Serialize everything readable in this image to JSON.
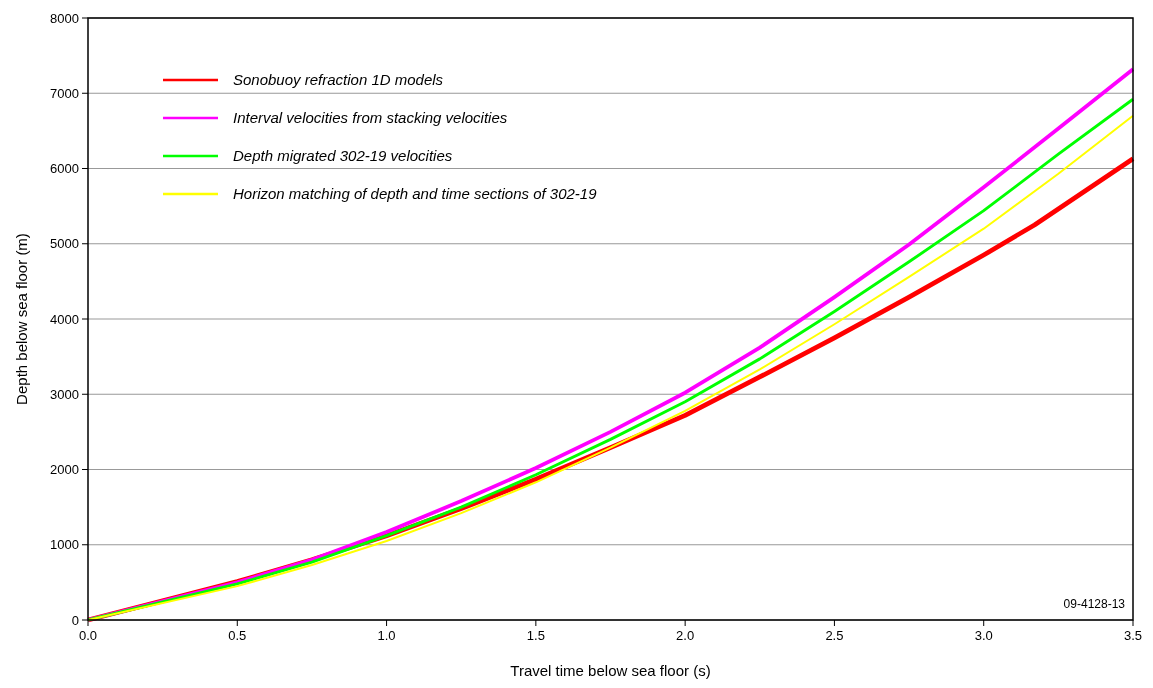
{
  "chart_data": {
    "type": "line",
    "xlabel": "Travel time below sea floor (s)",
    "ylabel": "Depth below sea floor (m)",
    "xlim": [
      0,
      3.5
    ],
    "xticks": [
      {
        "value": 0,
        "label": "0.0"
      },
      {
        "value": 0.5,
        "label": "0.5"
      },
      {
        "value": 1,
        "label": "1.0"
      },
      {
        "value": 1.5,
        "label": "1.5"
      },
      {
        "value": 2,
        "label": "2.0"
      },
      {
        "value": 2.5,
        "label": "2.5"
      },
      {
        "value": 3,
        "label": "3.0"
      },
      {
        "value": 3.5,
        "label": "3.5"
      }
    ],
    "ylim": [
      0,
      8000
    ],
    "yticks": [
      0,
      1000,
      2000,
      3000,
      4000,
      5000,
      6000,
      7000,
      8000
    ],
    "grid": "y",
    "legend": "top left",
    "line_style": "solid",
    "annotations": [
      "09-4128-13"
    ],
    "series": [
      {
        "name": "Sonobuoy refraction 1D models",
        "color": "#ff0000",
        "x": [
          0,
          0.5,
          0.75,
          1,
          1.25,
          1.5,
          1.75,
          2,
          2.25,
          2.5,
          2.75,
          3,
          3.17,
          3.5
        ],
        "values": [
          0,
          510,
          800,
          1120,
          1480,
          1870,
          2290,
          2720,
          3230,
          3750,
          4290,
          4850,
          5250,
          6130
        ]
      },
      {
        "name": "Interval velocities from stacking velocities",
        "color": "#ff00ff",
        "x": [
          0,
          0.5,
          0.75,
          1,
          1.25,
          1.5,
          1.75,
          2,
          2.25,
          2.5,
          2.75,
          3,
          3.25,
          3.5
        ],
        "values": [
          0,
          500,
          800,
          1170,
          1580,
          2020,
          2500,
          3020,
          3620,
          4290,
          4990,
          5750,
          6530,
          7320
        ]
      },
      {
        "name": "Depth migrated 302-19 velocities",
        "color": "#00ff00",
        "x": [
          0,
          0.5,
          0.75,
          1,
          1.25,
          1.5,
          1.75,
          2,
          2.25,
          2.5,
          2.75,
          3,
          3.25,
          3.5
        ],
        "values": [
          0,
          480,
          770,
          1120,
          1500,
          1930,
          2400,
          2900,
          3470,
          4100,
          4760,
          5440,
          6190,
          6920
        ]
      },
      {
        "name": "Horizon matching of depth and time sections of 302-19",
        "color": "#ffff00",
        "x": [
          0,
          0.5,
          0.75,
          1,
          1.25,
          1.5,
          1.75,
          2,
          2.25,
          2.5,
          2.75,
          3,
          3.25,
          3.5
        ],
        "values": [
          0,
          450,
          730,
          1050,
          1420,
          1830,
          2290,
          2780,
          3330,
          3930,
          4560,
          5200,
          5930,
          6700
        ]
      }
    ]
  }
}
